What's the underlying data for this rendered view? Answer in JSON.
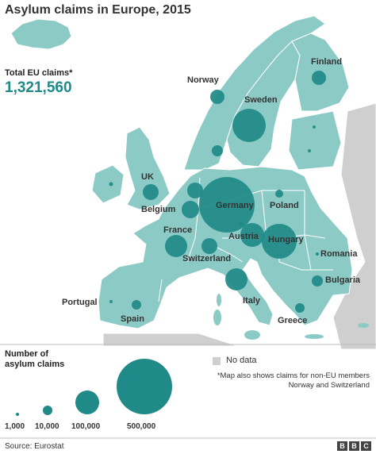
{
  "title": "Asylum claims in Europe, 2015",
  "total": {
    "label": "Total EU claims*",
    "value": "1,321,560"
  },
  "colors": {
    "sea": "#ffffff",
    "land_eu": "#8ccac6",
    "land_nodata": "#cfcfcf",
    "bubble": "#1f8a87",
    "border": "#ffffff"
  },
  "countries": [
    {
      "name": "Germany",
      "claims_approx": 476000
    },
    {
      "name": "Hungary",
      "claims_approx": 177000
    },
    {
      "name": "Sweden",
      "claims_approx": 163000
    },
    {
      "name": "Austria",
      "claims_approx": 88000
    },
    {
      "name": "Italy",
      "claims_approx": 84000
    },
    {
      "name": "France",
      "claims_approx": 76000
    },
    {
      "name": "UK",
      "claims_approx": 39000
    },
    {
      "name": "Switzerland",
      "claims_approx": 39000
    },
    {
      "name": "Belgium",
      "claims_approx": 44000
    },
    {
      "name": "Norway",
      "claims_approx": 31000
    },
    {
      "name": "Finland",
      "claims_approx": 32000
    },
    {
      "name": "Bulgaria",
      "claims_approx": 20000
    },
    {
      "name": "Spain",
      "claims_approx": 14000
    },
    {
      "name": "Greece",
      "claims_approx": 13000
    },
    {
      "name": "Poland",
      "claims_approx": 12000
    },
    {
      "name": "Romania",
      "claims_approx": 1000
    },
    {
      "name": "Portugal",
      "claims_approx": 1000
    }
  ],
  "legend": {
    "title_line1": "Number of",
    "title_line2": "asylum claims",
    "sizes": [
      "1,000",
      "10,000",
      "100,000",
      "500,000"
    ],
    "nodata": "No data",
    "footnote": "*Map also shows claims for non-EU members Norway and Switzerland"
  },
  "source": "Source: Eurostat",
  "logo": [
    "B",
    "B",
    "C"
  ]
}
